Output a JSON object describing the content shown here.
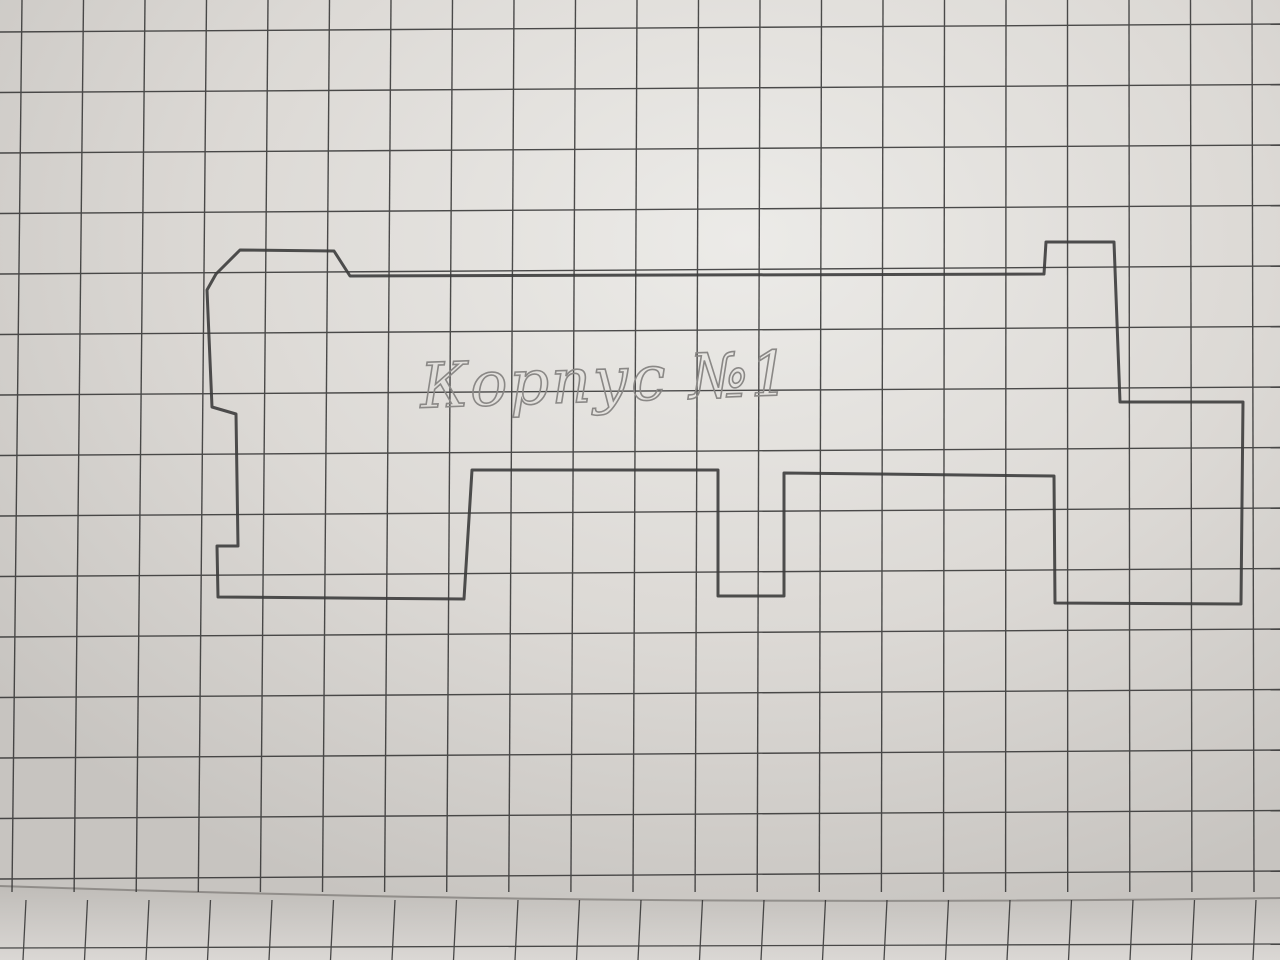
{
  "photo": {
    "subject": "graph-paper-sketch",
    "paper_color": "#dedbd7",
    "grid_color": "#2f2f2f",
    "pencil_color": "#3c3c3c",
    "caption_color": "#8a8886"
  },
  "sketch": {
    "caption": "Корпус №1"
  }
}
